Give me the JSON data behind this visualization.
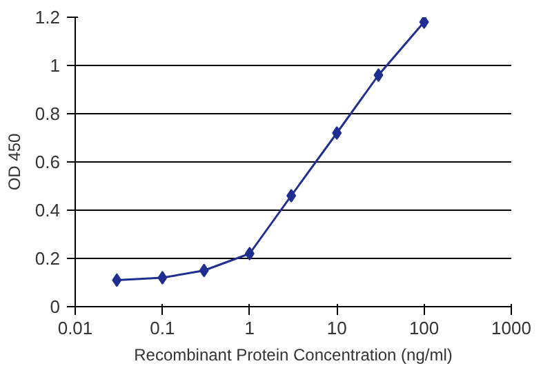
{
  "chart_data": {
    "type": "line",
    "xlabel": "Recombinant Protein Concentration (ng/ml)",
    "ylabel": "OD 450",
    "x": [
      0.03,
      0.1,
      0.3,
      1,
      3,
      10,
      30,
      100
    ],
    "series": [
      {
        "color": "#1f2f8f",
        "values": [
          0.11,
          0.12,
          0.15,
          0.22,
          0.46,
          0.72,
          0.96,
          1.18
        ]
      }
    ],
    "log": "x",
    "xlim": [
      0.01,
      1000
    ],
    "xticks": [
      0.01,
      0.1,
      1,
      10,
      100,
      1000
    ],
    "ylim": [
      0,
      1.2
    ],
    "yticks": [
      0,
      0.2,
      0.4,
      0.6,
      0.8,
      1,
      1.2
    ],
    "grid": "y",
    "marker": "diamond",
    "line_style": "solid"
  }
}
